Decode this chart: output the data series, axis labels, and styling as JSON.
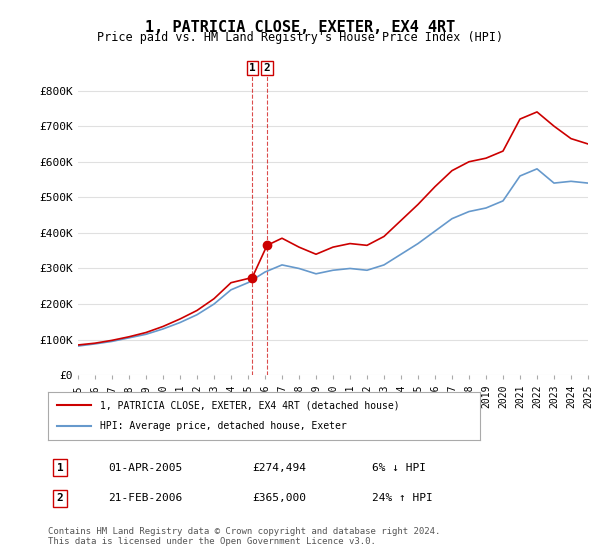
{
  "title": "1, PATRICIA CLOSE, EXETER, EX4 4RT",
  "subtitle": "Price paid vs. HM Land Registry's House Price Index (HPI)",
  "ylabel": "",
  "background_color": "#ffffff",
  "plot_bg_color": "#ffffff",
  "grid_color": "#e0e0e0",
  "hpi_color": "#6699cc",
  "price_color": "#cc0000",
  "ylim": [
    0,
    850000
  ],
  "yticks": [
    0,
    100000,
    200000,
    300000,
    400000,
    500000,
    600000,
    700000,
    800000
  ],
  "ytick_labels": [
    "£0",
    "£100K",
    "£200K",
    "£300K",
    "£400K",
    "£500K",
    "£600K",
    "£700K",
    "£800K"
  ],
  "sale1_date": 2005.25,
  "sale1_price": 274494,
  "sale1_label": "1",
  "sale1_text": "01-APR-2005",
  "sale1_price_text": "£274,494",
  "sale1_hpi_text": "6% ↓ HPI",
  "sale2_date": 2006.12,
  "sale2_price": 365000,
  "sale2_label": "2",
  "sale2_text": "21-FEB-2006",
  "sale2_price_text": "£365,000",
  "sale2_hpi_text": "24% ↑ HPI",
  "legend_label1": "1, PATRICIA CLOSE, EXETER, EX4 4RT (detached house)",
  "legend_label2": "HPI: Average price, detached house, Exeter",
  "footer": "Contains HM Land Registry data © Crown copyright and database right 2024.\nThis data is licensed under the Open Government Licence v3.0.",
  "xmin": 1995,
  "xmax": 2025,
  "hpi_x": [
    1995,
    1996,
    1997,
    1998,
    1999,
    2000,
    2001,
    2002,
    2003,
    2004,
    2005,
    2006,
    2007,
    2008,
    2009,
    2010,
    2011,
    2012,
    2013,
    2014,
    2015,
    2016,
    2017,
    2018,
    2019,
    2020,
    2021,
    2022,
    2023,
    2024,
    2025
  ],
  "hpi_y": [
    82000,
    88000,
    95000,
    105000,
    115000,
    130000,
    148000,
    170000,
    200000,
    240000,
    260000,
    290000,
    310000,
    300000,
    285000,
    295000,
    300000,
    295000,
    310000,
    340000,
    370000,
    405000,
    440000,
    460000,
    470000,
    490000,
    560000,
    580000,
    540000,
    545000,
    540000
  ],
  "price_x": [
    1995,
    1996,
    1997,
    1998,
    1999,
    2000,
    2001,
    2002,
    2003,
    2004,
    2005.25,
    2006.12,
    2007,
    2008,
    2009,
    2010,
    2011,
    2012,
    2013,
    2014,
    2015,
    2016,
    2017,
    2018,
    2019,
    2020,
    2021,
    2022,
    2023,
    2024,
    2025
  ],
  "price_y": [
    85000,
    90000,
    98000,
    108000,
    120000,
    137000,
    158000,
    182000,
    215000,
    260000,
    274494,
    365000,
    385000,
    360000,
    340000,
    360000,
    370000,
    365000,
    390000,
    435000,
    480000,
    530000,
    575000,
    600000,
    610000,
    630000,
    720000,
    740000,
    700000,
    665000,
    650000
  ]
}
